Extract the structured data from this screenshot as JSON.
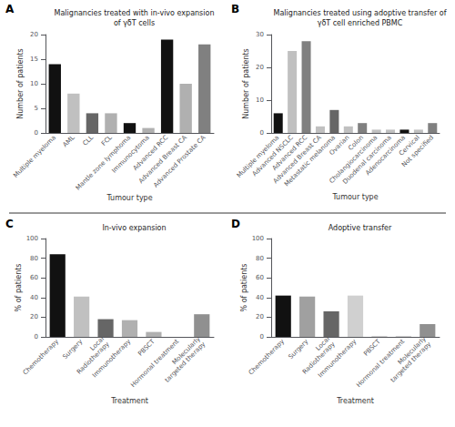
{
  "chart_data": [
    {
      "type": "bar",
      "title": "Malignancies treated with in-vivo expansion\nof γδT cells",
      "xlabel": "Tumour type",
      "ylabel": "Number of patients",
      "annotations": [
        "A"
      ],
      "categories": [
        "Multiple myeloma",
        "AML",
        "CLL",
        "FCL",
        "Mantle zone lymphoma",
        "Immunocytoma",
        "Advanced RCC",
        "Advanced Breast CA",
        "Advanced Prostate CA"
      ],
      "values": [
        14,
        8,
        4,
        4,
        2,
        1,
        19,
        10,
        18
      ],
      "colors": [
        "#111111",
        "#c0c0c0",
        "#666666",
        "#b0b0b0",
        "#111111",
        "#b0b0b0",
        "#111111",
        "#b0b0b0",
        "#808080"
      ],
      "ylim": [
        0,
        20
      ],
      "yticks": [
        0,
        5,
        10,
        15,
        20
      ],
      "grid": false
    },
    {
      "type": "bar",
      "title": "Malignancies treated using adoptive transfer of\nγδT cell enriched PBMC",
      "xlabel": "Tumour type",
      "ylabel": "Number of patients",
      "annotations": [
        "B"
      ],
      "categories": [
        "Multiple myeloma",
        "Advanced NSCLC",
        "Advanced RCC",
        "Advanced Breast CA",
        "Metastatic melanoma",
        "Ovarian",
        "Colon",
        "Cholangiocarcinoma",
        "Duodenal carcinoma",
        "Adenocarcinoma",
        "Cervical",
        "Not specified"
      ],
      "values": [
        6,
        25,
        28,
        2,
        7,
        2,
        3,
        1,
        1,
        1,
        1,
        3
      ],
      "colors": [
        "#111111",
        "#c0c0c0",
        "#808080",
        "#c0c0c0",
        "#666666",
        "#c0c0c0",
        "#808080",
        "#c0c0c0",
        "#c0c0c0",
        "#111111",
        "#c0c0c0",
        "#808080"
      ],
      "ylim": [
        0,
        30
      ],
      "yticks": [
        0,
        10,
        20,
        30
      ],
      "grid": false
    },
    {
      "type": "bar",
      "title": "In-vivo expansion",
      "xlabel": "Treatment",
      "ylabel": "% of patients",
      "annotations": [
        "C"
      ],
      "categories": [
        "Chemotherapy",
        "Surgery",
        "Local\nRadiotherapy",
        "Immunotherapy",
        "PBSCT",
        "Hormonal treatment",
        "Molecularly\ntargeted therapy"
      ],
      "values": [
        84,
        41,
        18,
        17,
        5,
        0,
        23
      ],
      "colors": [
        "#111111",
        "#c0c0c0",
        "#666666",
        "#b0b0b0",
        "#b0b0b0",
        "#b0b0b0",
        "#909090"
      ],
      "ylim": [
        0,
        100
      ],
      "yticks": [
        0,
        20,
        40,
        60,
        80,
        100
      ],
      "grid": false
    },
    {
      "type": "bar",
      "title": "Adoptive transfer",
      "xlabel": "Treatment",
      "ylabel": "% of patients",
      "annotations": [
        "D"
      ],
      "categories": [
        "Chemotherapy",
        "Surgery",
        "Local\nRadiotherapy",
        "Immunotherapy",
        "PBSCT",
        "Hormonal treatment",
        "Molecularly\ntargeted therapy"
      ],
      "values": [
        42,
        41,
        26,
        42,
        1,
        1,
        13
      ],
      "colors": [
        "#111111",
        "#a0a0a0",
        "#666666",
        "#d0d0d0",
        "#d0d0d0",
        "#d0d0d0",
        "#909090"
      ],
      "ylim": [
        0,
        100
      ],
      "yticks": [
        0,
        20,
        40,
        60,
        80,
        100
      ],
      "grid": false
    }
  ]
}
